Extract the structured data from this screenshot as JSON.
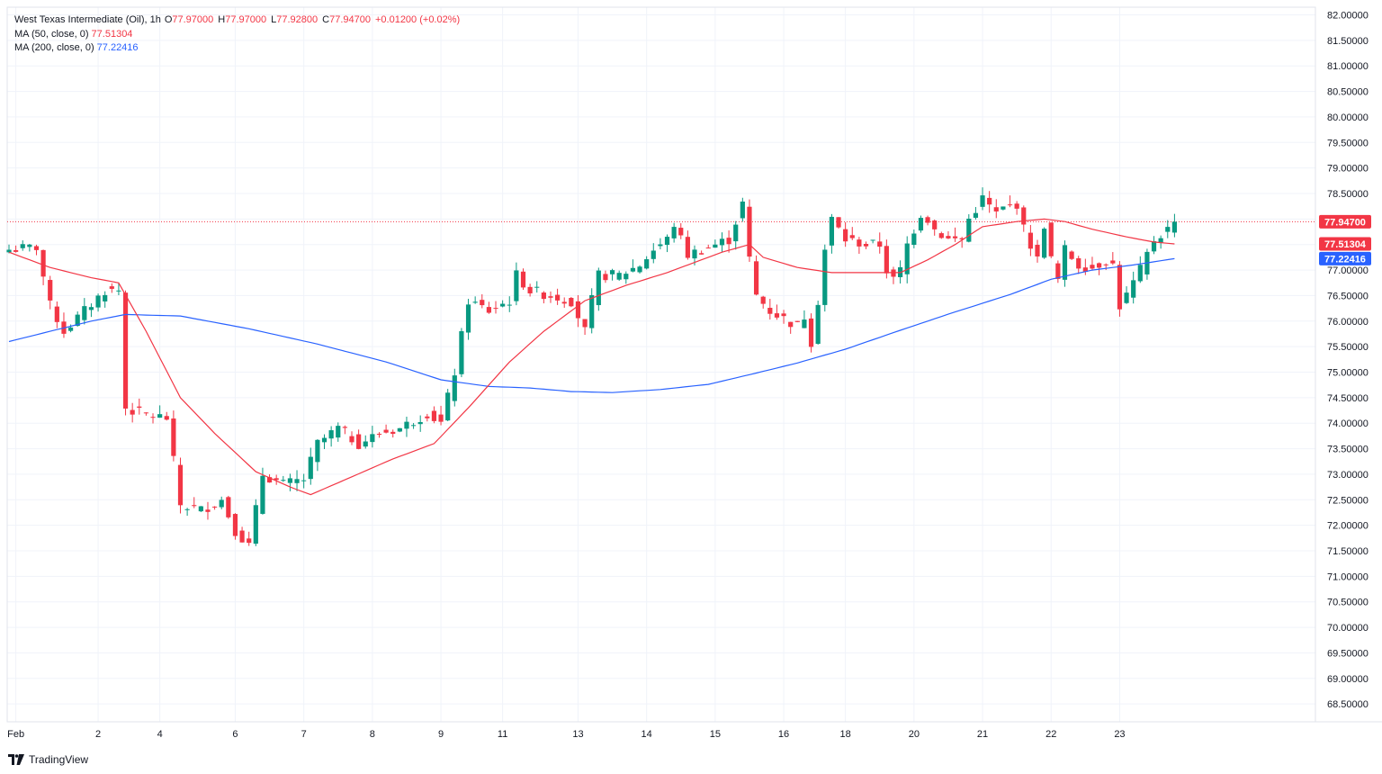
{
  "legend": {
    "symbol": "West Texas Intermediate (Oil), 1h",
    "o_label": "O",
    "o_value": "77.97000",
    "h_label": "H",
    "h_value": "77.97000",
    "l_label": "L",
    "l_value": "77.92800",
    "c_label": "C",
    "c_value": "77.94700",
    "change": "+0.01200 (+0.02%)",
    "ma50_label": "MA (50, close, 0)",
    "ma50_value": "77.51304",
    "ma200_label": "MA (200, close, 0)",
    "ma200_value": "77.22416"
  },
  "price_tags": {
    "last": "77.94700",
    "ma50": "77.51304",
    "ma200": "77.22416"
  },
  "branding": {
    "name": "TradingView"
  },
  "colors": {
    "up": "#089981",
    "down": "#f23645",
    "ma50": "#f23645",
    "ma200": "#2962ff",
    "grid": "#f0f3fa",
    "text": "#131722"
  },
  "chart_data": {
    "type": "candlestick",
    "timeframe": "1h",
    "y_axis": {
      "ticks": [
        "68.50000",
        "69.00000",
        "69.50000",
        "70.00000",
        "70.50000",
        "71.00000",
        "71.50000",
        "72.00000",
        "72.50000",
        "73.00000",
        "73.50000",
        "74.00000",
        "74.50000",
        "75.00000",
        "75.50000",
        "76.00000",
        "76.50000",
        "77.00000",
        "77.50000",
        "78.00000",
        "78.50000",
        "79.00000",
        "79.50000",
        "80.00000",
        "80.50000",
        "81.00000",
        "81.50000",
        "82.00000"
      ],
      "range": [
        68.15,
        82.15
      ]
    },
    "x_axis": {
      "labels": [
        "Feb",
        "2",
        "4",
        "6",
        "7",
        "8",
        "9",
        "11",
        "13",
        "14",
        "15",
        "16",
        "18",
        "20",
        "21",
        "22",
        "23"
      ],
      "label_positions": [
        1,
        13,
        22,
        33,
        43,
        53,
        63,
        72,
        83,
        93,
        103,
        113,
        122,
        132,
        142,
        152,
        162
      ]
    },
    "price_path": [
      {
        "i": 0,
        "v": 77.4
      },
      {
        "i": 4,
        "v": 77.45
      },
      {
        "i": 6,
        "v": 76.3
      },
      {
        "i": 8,
        "v": 75.8
      },
      {
        "i": 11,
        "v": 76.2
      },
      {
        "i": 14,
        "v": 76.6
      },
      {
        "i": 16,
        "v": 76.6
      },
      {
        "i": 17,
        "v": 74.3
      },
      {
        "i": 19,
        "v": 74.2
      },
      {
        "i": 23,
        "v": 74.1
      },
      {
        "i": 25,
        "v": 72.4
      },
      {
        "i": 28,
        "v": 72.3
      },
      {
        "i": 31,
        "v": 72.5
      },
      {
        "i": 33,
        "v": 71.9
      },
      {
        "i": 35,
        "v": 71.6
      },
      {
        "i": 37,
        "v": 73.0
      },
      {
        "i": 40,
        "v": 72.8
      },
      {
        "i": 43,
        "v": 72.9
      },
      {
        "i": 45,
        "v": 73.6
      },
      {
        "i": 48,
        "v": 73.9
      },
      {
        "i": 51,
        "v": 73.6
      },
      {
        "i": 54,
        "v": 73.8
      },
      {
        "i": 57,
        "v": 73.9
      },
      {
        "i": 61,
        "v": 74.2
      },
      {
        "i": 63,
        "v": 74.0
      },
      {
        "i": 65,
        "v": 75.0
      },
      {
        "i": 67,
        "v": 76.4
      },
      {
        "i": 70,
        "v": 76.2
      },
      {
        "i": 73,
        "v": 76.4
      },
      {
        "i": 74,
        "v": 76.9
      },
      {
        "i": 76,
        "v": 76.6
      },
      {
        "i": 79,
        "v": 76.5
      },
      {
        "i": 82,
        "v": 76.4
      },
      {
        "i": 84,
        "v": 75.8
      },
      {
        "i": 85,
        "v": 76.4
      },
      {
        "i": 86,
        "v": 76.9
      },
      {
        "i": 89,
        "v": 76.9
      },
      {
        "i": 92,
        "v": 77.1
      },
      {
        "i": 94,
        "v": 77.4
      },
      {
        "i": 96,
        "v": 77.6
      },
      {
        "i": 97,
        "v": 77.9
      },
      {
        "i": 99,
        "v": 77.3
      },
      {
        "i": 103,
        "v": 77.5
      },
      {
        "i": 105,
        "v": 77.6
      },
      {
        "i": 107,
        "v": 78.3
      },
      {
        "i": 108,
        "v": 77.2
      },
      {
        "i": 109,
        "v": 76.5
      },
      {
        "i": 111,
        "v": 76.2
      },
      {
        "i": 115,
        "v": 75.9
      },
      {
        "i": 116,
        "v": 76.1
      },
      {
        "i": 117,
        "v": 75.6
      },
      {
        "i": 118,
        "v": 76.4
      },
      {
        "i": 119,
        "v": 77.4
      },
      {
        "i": 120,
        "v": 78.0
      },
      {
        "i": 122,
        "v": 77.6
      },
      {
        "i": 125,
        "v": 77.5
      },
      {
        "i": 127,
        "v": 77.5
      },
      {
        "i": 128,
        "v": 77.0
      },
      {
        "i": 129,
        "v": 76.8
      },
      {
        "i": 130,
        "v": 77.0
      },
      {
        "i": 131,
        "v": 77.5
      },
      {
        "i": 133,
        "v": 78.1
      },
      {
        "i": 134,
        "v": 78.0
      },
      {
        "i": 135,
        "v": 77.8
      },
      {
        "i": 137,
        "v": 77.6
      },
      {
        "i": 139,
        "v": 77.6
      },
      {
        "i": 140,
        "v": 78.0
      },
      {
        "i": 142,
        "v": 78.4
      },
      {
        "i": 144,
        "v": 78.1
      },
      {
        "i": 145,
        "v": 78.2
      },
      {
        "i": 147,
        "v": 78.3
      },
      {
        "i": 148,
        "v": 77.8
      },
      {
        "i": 150,
        "v": 77.2
      },
      {
        "i": 151,
        "v": 77.9
      },
      {
        "i": 152,
        "v": 77.2
      },
      {
        "i": 153,
        "v": 76.8
      },
      {
        "i": 154,
        "v": 77.4
      },
      {
        "i": 156,
        "v": 77.1
      },
      {
        "i": 158,
        "v": 77.05
      },
      {
        "i": 160,
        "v": 77.2
      },
      {
        "i": 161,
        "v": 77.1
      },
      {
        "i": 162,
        "v": 76.3
      },
      {
        "i": 163,
        "v": 76.5
      },
      {
        "i": 165,
        "v": 77.0
      },
      {
        "i": 167,
        "v": 77.6
      },
      {
        "i": 169,
        "v": 77.8
      },
      {
        "i": 170,
        "v": 77.947
      }
    ],
    "ma50_path": [
      {
        "i": 0,
        "v": 77.35
      },
      {
        "i": 6,
        "v": 77.05
      },
      {
        "i": 12,
        "v": 76.85
      },
      {
        "i": 16,
        "v": 76.75
      },
      {
        "i": 20,
        "v": 75.8
      },
      {
        "i": 25,
        "v": 74.5
      },
      {
        "i": 30,
        "v": 73.8
      },
      {
        "i": 36,
        "v": 73.05
      },
      {
        "i": 41,
        "v": 72.75
      },
      {
        "i": 44,
        "v": 72.6
      },
      {
        "i": 50,
        "v": 72.95
      },
      {
        "i": 56,
        "v": 73.3
      },
      {
        "i": 62,
        "v": 73.6
      },
      {
        "i": 67,
        "v": 74.3
      },
      {
        "i": 73,
        "v": 75.2
      },
      {
        "i": 78,
        "v": 75.8
      },
      {
        "i": 84,
        "v": 76.4
      },
      {
        "i": 90,
        "v": 76.7
      },
      {
        "i": 96,
        "v": 76.95
      },
      {
        "i": 100,
        "v": 77.15
      },
      {
        "i": 104,
        "v": 77.35
      },
      {
        "i": 108,
        "v": 77.5
      },
      {
        "i": 110,
        "v": 77.25
      },
      {
        "i": 115,
        "v": 77.05
      },
      {
        "i": 120,
        "v": 76.95
      },
      {
        "i": 125,
        "v": 76.95
      },
      {
        "i": 130,
        "v": 76.95
      },
      {
        "i": 134,
        "v": 77.2
      },
      {
        "i": 138,
        "v": 77.5
      },
      {
        "i": 142,
        "v": 77.85
      },
      {
        "i": 147,
        "v": 77.95
      },
      {
        "i": 151,
        "v": 78.0
      },
      {
        "i": 154,
        "v": 77.95
      },
      {
        "i": 158,
        "v": 77.8
      },
      {
        "i": 163,
        "v": 77.65
      },
      {
        "i": 167,
        "v": 77.55
      },
      {
        "i": 170,
        "v": 77.513
      }
    ],
    "ma200_path": [
      {
        "i": 0,
        "v": 75.6
      },
      {
        "i": 6,
        "v": 75.8
      },
      {
        "i": 12,
        "v": 76.0
      },
      {
        "i": 17,
        "v": 76.13
      },
      {
        "i": 25,
        "v": 76.1
      },
      {
        "i": 35,
        "v": 75.85
      },
      {
        "i": 45,
        "v": 75.55
      },
      {
        "i": 55,
        "v": 75.2
      },
      {
        "i": 63,
        "v": 74.85
      },
      {
        "i": 70,
        "v": 74.72
      },
      {
        "i": 76,
        "v": 74.69
      },
      {
        "i": 82,
        "v": 74.62
      },
      {
        "i": 88,
        "v": 74.6
      },
      {
        "i": 95,
        "v": 74.66
      },
      {
        "i": 102,
        "v": 74.76
      },
      {
        "i": 108,
        "v": 74.95
      },
      {
        "i": 115,
        "v": 75.18
      },
      {
        "i": 122,
        "v": 75.45
      },
      {
        "i": 130,
        "v": 75.82
      },
      {
        "i": 138,
        "v": 76.18
      },
      {
        "i": 146,
        "v": 76.52
      },
      {
        "i": 152,
        "v": 76.82
      },
      {
        "i": 158,
        "v": 77.0
      },
      {
        "i": 164,
        "v": 77.1
      },
      {
        "i": 170,
        "v": 77.224
      }
    ],
    "last_price": 77.947,
    "ma50_last": 77.51304,
    "ma200_last": 77.22416,
    "bars_visible": 171,
    "grid": true
  }
}
